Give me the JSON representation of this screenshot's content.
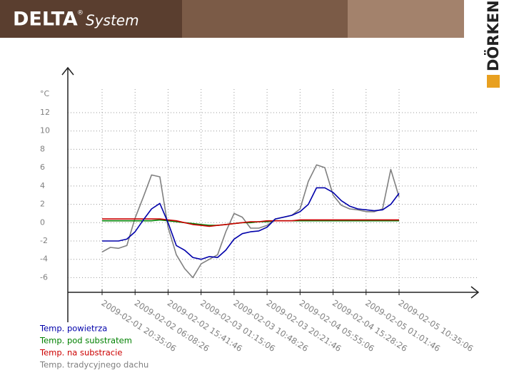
{
  "header": {
    "brand": "DELTA",
    "brand_mark": "®",
    "product": "System",
    "company": "DÖRKEN"
  },
  "chart_data": {
    "type": "line",
    "y_label": "°C",
    "x": [
      "2009-02-01 20:35:06",
      "2009-02-01 22:58:26",
      "2009-02-02 01:21:46",
      "2009-02-02 03:45:06",
      "2009-02-02 06:08:26",
      "2009-02-02 08:31:46",
      "2009-02-02 10:55:06",
      "2009-02-02 13:18:26",
      "2009-02-02 15:41:46",
      "2009-02-02 18:05:06",
      "2009-02-02 20:28:26",
      "2009-02-02 22:51:46",
      "2009-02-03 01:15:06",
      "2009-02-03 03:38:26",
      "2009-02-03 06:01:46",
      "2009-02-03 08:25:06",
      "2009-02-03 10:48:26",
      "2009-02-03 13:11:46",
      "2009-02-03 15:35:06",
      "2009-02-03 17:58:26",
      "2009-02-03 20:21:46",
      "2009-02-03 22:45:06",
      "2009-02-04 01:08:26",
      "2009-02-04 03:31:46",
      "2009-02-04 05:55:06",
      "2009-02-04 08:18:26",
      "2009-02-04 10:41:46",
      "2009-02-04 13:05:06",
      "2009-02-04 15:28:26",
      "2009-02-04 17:51:46",
      "2009-02-04 20:15:06",
      "2009-02-04 22:38:26",
      "2009-02-05 01:01:46",
      "2009-02-05 03:25:06",
      "2009-02-05 05:48:26",
      "2009-02-05 08:11:46",
      "2009-02-05 10:35:06"
    ],
    "xticks": [
      "2009-02-01 20:35:06",
      "2009-02-02 06:08:26",
      "2009-02-02 15:41:46",
      "2009-02-03 01:15:06",
      "2009-02-03 10:48:26",
      "2009-02-03 20:21:46",
      "2009-02-04 05:55:06",
      "2009-02-04 15:28:26",
      "2009-02-05 01:01:46",
      "2009-02-05 10:35:06"
    ],
    "ylim": [
      -7.6,
      16.9
    ],
    "yticks": [
      12,
      10,
      8,
      6,
      4,
      2,
      0,
      -2,
      -4,
      -6
    ],
    "grid": true,
    "series": [
      {
        "name": "Temp. tradycyjnego dachu",
        "color": "#808080",
        "values": [
          -3.2,
          -2.7,
          -2.8,
          -2.5,
          0.5,
          2.8,
          5.2,
          5,
          -0.5,
          -3.5,
          -5,
          -6,
          -4.5,
          -4,
          -3.5,
          -1,
          1,
          0.6,
          -0.6,
          -0.6,
          -0.3,
          0.4,
          0.6,
          0.8,
          1.5,
          4.5,
          6.3,
          6,
          3,
          1.9,
          1.5,
          1.4,
          1.2,
          1.2,
          1.5,
          5.8,
          2.8
        ]
      },
      {
        "name": "Temp. pod substratem",
        "color": "#008000",
        "values": [
          0.2,
          0.2,
          0.2,
          0.2,
          0.2,
          0.2,
          0.2,
          0.3,
          0.2,
          0.1,
          0,
          -0.1,
          -0.2,
          -0.3,
          -0.3,
          -0.2,
          -0.1,
          0,
          0,
          0.1,
          0.1,
          0.2,
          0.2,
          0.2,
          0.2,
          0.2,
          0.2,
          0.2,
          0.2,
          0.2,
          0.2,
          0.2,
          0.2,
          0.2,
          0.2,
          0.2,
          0.2
        ]
      },
      {
        "name": "Temp. na substracie",
        "color": "#cc0000",
        "values": [
          0.4,
          0.4,
          0.4,
          0.4,
          0.4,
          0.4,
          0.4,
          0.4,
          0.3,
          0.2,
          0,
          -0.2,
          -0.3,
          -0.4,
          -0.3,
          -0.2,
          -0.1,
          0,
          0.1,
          0.1,
          0.2,
          0.2,
          0.2,
          0.2,
          0.3,
          0.3,
          0.3,
          0.3,
          0.3,
          0.3,
          0.3,
          0.3,
          0.3,
          0.3,
          0.3,
          0.3,
          0.3
        ]
      },
      {
        "name": "Temp. powietrza",
        "color": "#0000aa",
        "values": [
          -2,
          -2,
          -2,
          -1.8,
          -1,
          0.3,
          1.5,
          2.1,
          0,
          -2.5,
          -3,
          -3.8,
          -4,
          -3.7,
          -3.8,
          -3,
          -1.8,
          -1.2,
          -1,
          -0.9,
          -0.5,
          0.4,
          0.6,
          0.8,
          1.2,
          2,
          3.8,
          3.8,
          3.3,
          2.4,
          1.8,
          1.5,
          1.4,
          1.3,
          1.4,
          2,
          3.2
        ]
      }
    ],
    "legend_order": [
      3,
      1,
      2,
      0
    ]
  }
}
